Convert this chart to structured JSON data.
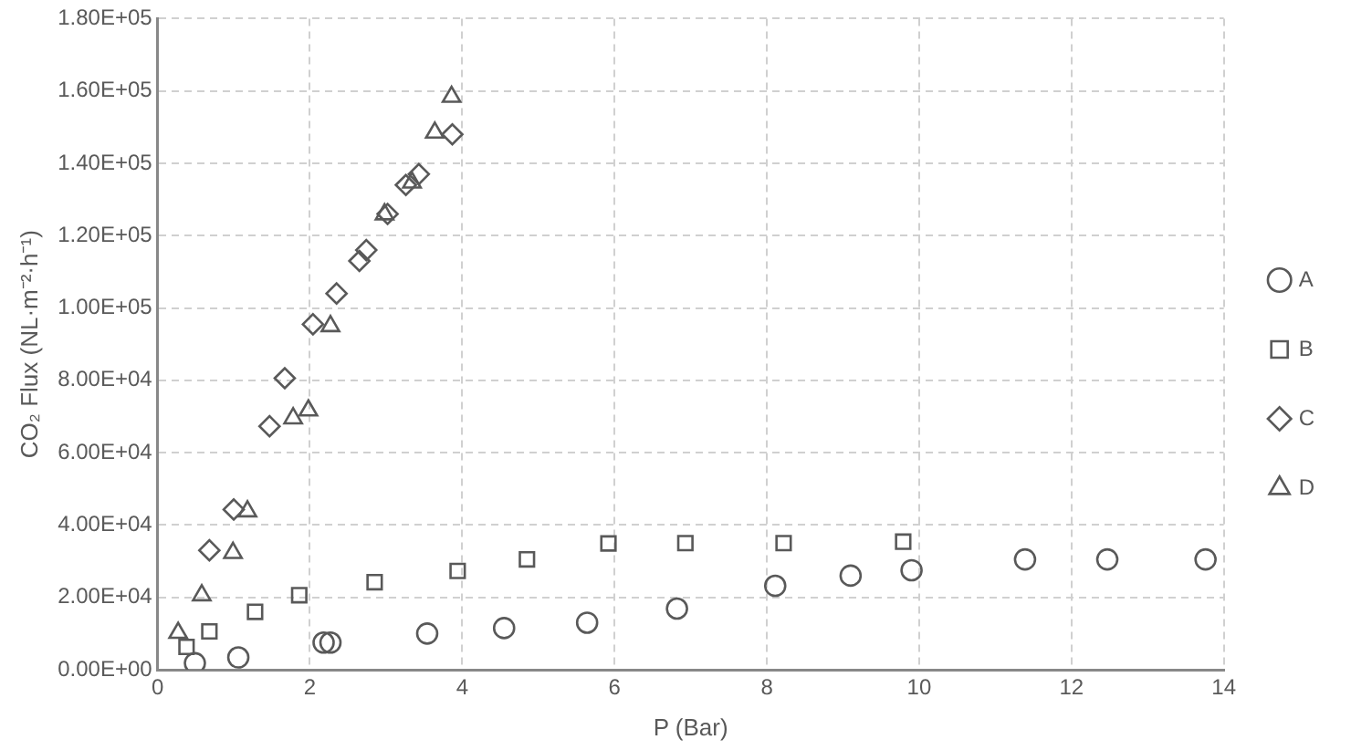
{
  "chart_data": {
    "type": "scatter",
    "xlabel": "P (Bar)",
    "ylabel": "CO₂ Flux (NL·m⁻²·h⁻¹)",
    "xlim": [
      0,
      14
    ],
    "xticks": [
      0,
      2,
      4,
      6,
      8,
      10,
      12,
      14
    ],
    "ylim": [
      0,
      180000
    ],
    "yticks": [
      {
        "value": 0,
        "label": "0.00E+00"
      },
      {
        "value": 20000,
        "label": "2.00E+04"
      },
      {
        "value": 40000,
        "label": "4.00E+04"
      },
      {
        "value": 60000,
        "label": "6.00E+04"
      },
      {
        "value": 80000,
        "label": "8.00E+04"
      },
      {
        "value": 100000,
        "label": "1.00E+05"
      },
      {
        "value": 120000,
        "label": "1.20E+05"
      },
      {
        "value": 140000,
        "label": "1.40E+05"
      },
      {
        "value": 160000,
        "label": "1.60E+05"
      },
      {
        "value": 180000,
        "label": "1.80E+05"
      }
    ],
    "grid": true,
    "legend": "right",
    "series": [
      {
        "name": "A",
        "color": "#595959",
        "marker": "circle",
        "x": [
          0.49,
          1.06,
          2.18,
          2.27,
          3.54,
          4.55,
          5.64,
          6.82,
          8.11,
          9.1,
          9.9,
          11.39,
          12.47,
          13.76
        ],
        "values": [
          1800,
          3400,
          7500,
          7500,
          10000,
          11500,
          13000,
          16900,
          23200,
          26000,
          27500,
          30500,
          30500,
          30500
        ]
      },
      {
        "name": "B",
        "color": "#595959",
        "marker": "square",
        "x": [
          0.38,
          0.68,
          1.28,
          1.86,
          2.85,
          3.94,
          4.85,
          5.92,
          6.93,
          8.22,
          9.79
        ],
        "values": [
          6300,
          10600,
          16000,
          20600,
          24200,
          27300,
          30500,
          34900,
          35000,
          35000,
          35400
        ]
      },
      {
        "name": "C",
        "color": "#595959",
        "marker": "diamond",
        "x": [
          0.68,
          1.0,
          1.47,
          1.67,
          2.04,
          2.35,
          2.65,
          2.74,
          3.02,
          3.26,
          3.43,
          3.87
        ],
        "values": [
          33000,
          44300,
          67300,
          80600,
          95500,
          104000,
          113000,
          116000,
          126000,
          134000,
          137000,
          148000
        ]
      },
      {
        "name": "D",
        "color": "#595959",
        "marker": "triangle",
        "x": [
          0.27,
          0.58,
          0.99,
          1.18,
          1.78,
          1.98,
          2.27,
          2.98,
          3.34,
          3.64,
          3.86
        ],
        "values": [
          10200,
          20600,
          32300,
          43800,
          69500,
          71700,
          95000,
          125900,
          134700,
          148500,
          158400
        ]
      }
    ]
  }
}
